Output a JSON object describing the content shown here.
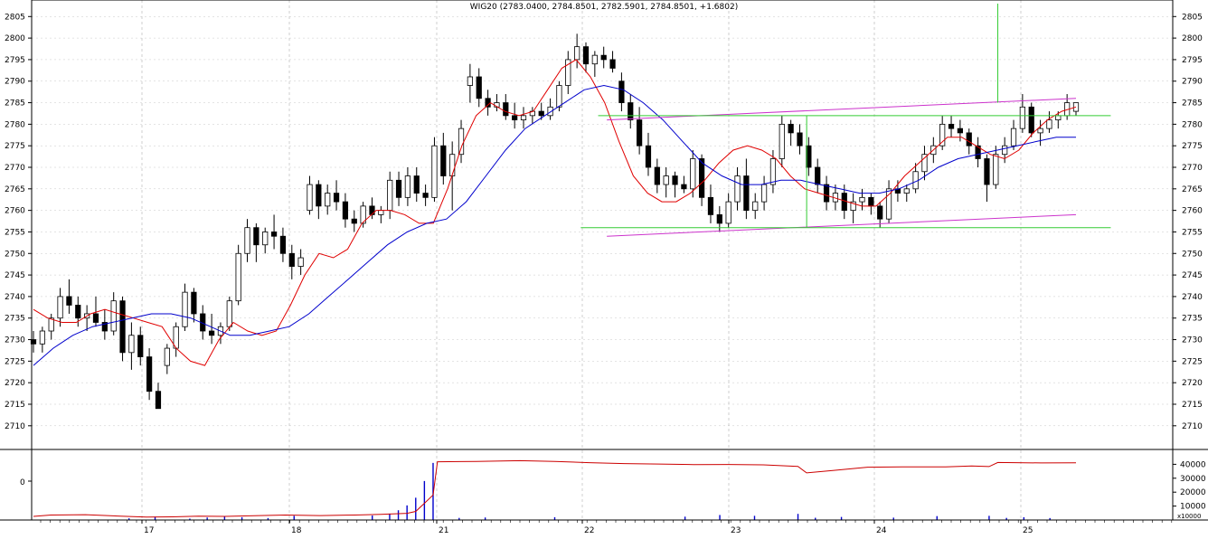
{
  "chart_data": [
    {
      "type": "candlestick",
      "title": "WIG20 (2783.0400, 2784.8501, 2782.5901, 2784.8501, +1.6802)",
      "y_ticks": [
        2710,
        2715,
        2720,
        2725,
        2730,
        2735,
        2740,
        2745,
        2750,
        2755,
        2760,
        2765,
        2770,
        2775,
        2780,
        2785,
        2790,
        2795,
        2800,
        2805
      ],
      "ylim": [
        2704.5,
        2808
      ],
      "day_labels": [
        "17",
        "18",
        "21",
        "22",
        "23",
        "24",
        "25"
      ],
      "grid": true,
      "colors": {
        "candle": "#000000",
        "ma_short": "#e00000",
        "ma_long": "#0000cc",
        "channel": "#cc33cc",
        "levels": "#33cc33"
      },
      "ohlc": [
        [
          2730,
          2732,
          2727,
          2729
        ],
        [
          2729,
          2733,
          2727,
          2732
        ],
        [
          2732,
          2736,
          2730,
          2735
        ],
        [
          2735,
          2742,
          2733,
          2740
        ],
        [
          2740,
          2744,
          2736,
          2738
        ],
        [
          2738,
          2740,
          2733,
          2735
        ],
        [
          2735,
          2738,
          2732,
          2736
        ],
        [
          2736,
          2740,
          2733,
          2734
        ],
        [
          2734,
          2737,
          2730,
          2732
        ],
        [
          2732,
          2741,
          2731,
          2739
        ],
        [
          2739,
          2740,
          2725,
          2727
        ],
        [
          2727,
          2734,
          2723,
          2731
        ],
        [
          2731,
          2733,
          2724,
          2726
        ],
        [
          2726,
          2728,
          2716,
          2718
        ],
        [
          2718,
          2720,
          2714,
          2714
        ],
        [
          2724,
          2729,
          2722,
          2728
        ],
        [
          2728,
          2734,
          2726,
          2733
        ],
        [
          2733,
          2743,
          2732,
          2741
        ],
        [
          2741,
          2742,
          2734,
          2736
        ],
        [
          2736,
          2738,
          2730,
          2732
        ],
        [
          2732,
          2736,
          2729,
          2731
        ],
        [
          2731,
          2734,
          2729,
          2733
        ],
        [
          2733,
          2740,
          2732,
          2739
        ],
        [
          2739,
          2752,
          2738,
          2750
        ],
        [
          2750,
          2758,
          2748,
          2756
        ],
        [
          2756,
          2757,
          2748,
          2752
        ],
        [
          2752,
          2756,
          2750,
          2755
        ],
        [
          2755,
          2759,
          2751,
          2754
        ],
        [
          2754,
          2756,
          2748,
          2750
        ],
        [
          2750,
          2752,
          2744,
          2747
        ],
        [
          2747,
          2751,
          2745,
          2749
        ],
        [
          2760,
          2768,
          2759,
          2766
        ],
        [
          2766,
          2767,
          2758,
          2761
        ],
        [
          2761,
          2766,
          2759,
          2764
        ],
        [
          2764,
          2767,
          2760,
          2762
        ],
        [
          2762,
          2764,
          2756,
          2758
        ],
        [
          2758,
          2760,
          2755,
          2757
        ],
        [
          2757,
          2762,
          2756,
          2761
        ],
        [
          2761,
          2763,
          2758,
          2759
        ],
        [
          2759,
          2761,
          2757,
          2760
        ],
        [
          2760,
          2769,
          2758,
          2767
        ],
        [
          2767,
          2769,
          2761,
          2763
        ],
        [
          2763,
          2770,
          2761,
          2768
        ],
        [
          2768,
          2770,
          2762,
          2764
        ],
        [
          2764,
          2766,
          2761,
          2763
        ],
        [
          2763,
          2777,
          2762,
          2775
        ],
        [
          2775,
          2778,
          2766,
          2768
        ],
        [
          2768,
          2776,
          2760,
          2773
        ],
        [
          2773,
          2781,
          2771,
          2779
        ],
        [
          2789,
          2794,
          2785,
          2791
        ],
        [
          2791,
          2793,
          2784,
          2786
        ],
        [
          2786,
          2788,
          2782,
          2784
        ],
        [
          2784,
          2787,
          2783,
          2785
        ],
        [
          2785,
          2787,
          2781,
          2782
        ],
        [
          2782,
          2785,
          2779,
          2781
        ],
        [
          2781,
          2784,
          2779,
          2782
        ],
        [
          2782,
          2784,
          2780,
          2783
        ],
        [
          2783,
          2785,
          2781,
          2782
        ],
        [
          2782,
          2786,
          2781,
          2784
        ],
        [
          2784,
          2790,
          2783,
          2789
        ],
        [
          2789,
          2797,
          2787,
          2795
        ],
        [
          2795,
          2801,
          2793,
          2798
        ],
        [
          2798,
          2799,
          2792,
          2794
        ],
        [
          2794,
          2797,
          2791,
          2796
        ],
        [
          2796,
          2798,
          2793,
          2795
        ],
        [
          2795,
          2797,
          2792,
          2793
        ],
        [
          2790,
          2792,
          2783,
          2785
        ],
        [
          2785,
          2787,
          2779,
          2781
        ],
        [
          2781,
          2784,
          2773,
          2775
        ],
        [
          2775,
          2778,
          2768,
          2770
        ],
        [
          2770,
          2772,
          2764,
          2766
        ],
        [
          2766,
          2770,
          2763,
          2768
        ],
        [
          2768,
          2769,
          2763,
          2766
        ],
        [
          2766,
          2768,
          2764,
          2765
        ],
        [
          2765,
          2774,
          2763,
          2772
        ],
        [
          2772,
          2773,
          2761,
          2763
        ],
        [
          2763,
          2766,
          2757,
          2759
        ],
        [
          2759,
          2761,
          2755,
          2757
        ],
        [
          2757,
          2764,
          2756,
          2762
        ],
        [
          2762,
          2770,
          2760,
          2768
        ],
        [
          2768,
          2772,
          2758,
          2760
        ],
        [
          2760,
          2764,
          2758,
          2762
        ],
        [
          2762,
          2768,
          2760,
          2766
        ],
        [
          2766,
          2774,
          2764,
          2772
        ],
        [
          2772,
          2782,
          2770,
          2780
        ],
        [
          2780,
          2781,
          2775,
          2778
        ],
        [
          2778,
          2780,
          2773,
          2775
        ],
        [
          2775,
          2777,
          2768,
          2770
        ],
        [
          2770,
          2772,
          2764,
          2766
        ],
        [
          2766,
          2768,
          2760,
          2762
        ],
        [
          2762,
          2766,
          2760,
          2764
        ],
        [
          2764,
          2766,
          2758,
          2760
        ],
        [
          2760,
          2764,
          2757,
          2762
        ],
        [
          2762,
          2765,
          2760,
          2763
        ],
        [
          2763,
          2764,
          2759,
          2761
        ],
        [
          2761,
          2762,
          2756,
          2758
        ],
        [
          2758,
          2767,
          2757,
          2765
        ],
        [
          2765,
          2767,
          2762,
          2764
        ],
        [
          2764,
          2766,
          2762,
          2765
        ],
        [
          2765,
          2771,
          2764,
          2769
        ],
        [
          2769,
          2775,
          2767,
          2773
        ],
        [
          2773,
          2777,
          2771,
          2775
        ],
        [
          2775,
          2782,
          2774,
          2780
        ],
        [
          2780,
          2782,
          2777,
          2779
        ],
        [
          2779,
          2781,
          2776,
          2778
        ],
        [
          2778,
          2779,
          2773,
          2775
        ],
        [
          2775,
          2777,
          2770,
          2772
        ],
        [
          2772,
          2773,
          2762,
          2766
        ],
        [
          2766,
          2775,
          2765,
          2773
        ],
        [
          2773,
          2777,
          2771,
          2775
        ],
        [
          2775,
          2781,
          2774,
          2779
        ],
        [
          2779,
          2787,
          2778,
          2784
        ],
        [
          2784,
          2785,
          2777,
          2778
        ],
        [
          2778,
          2781,
          2775,
          2779
        ],
        [
          2779,
          2783,
          2778,
          2781
        ],
        [
          2781,
          2783,
          2779,
          2782
        ],
        [
          2782,
          2787,
          2781,
          2785
        ],
        [
          2783,
          2785,
          2782,
          2785
        ]
      ],
      "ma_short": [
        2737,
        2735,
        2734,
        2734,
        2736,
        2737,
        2736,
        2735,
        2734,
        2733,
        2728,
        2725,
        2724,
        2730,
        2734,
        2732,
        2731,
        2732,
        2738,
        2745,
        2750,
        2749,
        2751,
        2757,
        2760,
        2760,
        2759,
        2757,
        2757,
        2765,
        2775,
        2782,
        2785,
        2783,
        2782,
        2783,
        2788,
        2793,
        2795,
        2791,
        2785,
        2776,
        2768,
        2764,
        2762,
        2762,
        2764,
        2767,
        2771,
        2774,
        2775,
        2774,
        2772,
        2768,
        2765,
        2764,
        2763,
        2762,
        2761,
        2761,
        2764,
        2768,
        2771,
        2774,
        2777,
        2777,
        2775,
        2773,
        2772,
        2774,
        2778,
        2781,
        2783,
        2784
      ],
      "ma_long": [
        2724,
        2728,
        2731,
        2733,
        2734,
        2735,
        2736,
        2736,
        2735,
        2733,
        2731,
        2731,
        2732,
        2733,
        2736,
        2740,
        2744,
        2748,
        2752,
        2755,
        2757,
        2758,
        2762,
        2768,
        2774,
        2779,
        2782,
        2785,
        2788,
        2789,
        2788,
        2785,
        2781,
        2776,
        2771,
        2768,
        2766,
        2766,
        2767,
        2767,
        2766,
        2765,
        2764,
        2764,
        2765,
        2767,
        2770,
        2772,
        2773,
        2774,
        2775,
        2776,
        2777,
        2777
      ],
      "channel_lines": [
        {
          "from": [
            66,
            2781
          ],
          "to": [
            120,
            2786
          ]
        },
        {
          "from": [
            66,
            2754
          ],
          "to": [
            120,
            2759
          ]
        }
      ],
      "horizontal_levels": [
        {
          "from": [
            65,
            2782
          ],
          "to": [
            124,
            2782
          ]
        },
        {
          "from": [
            63,
            2756
          ],
          "to": [
            124,
            2756
          ]
        }
      ],
      "vertical_markers": [
        {
          "at": 89,
          "from": 2756,
          "to": 2782
        },
        {
          "at": 111,
          "from": 2785,
          "to": 2808
        }
      ]
    },
    {
      "type": "bar+line",
      "left_ticks": [
        "0"
      ],
      "right_ticks": [
        40000,
        30000,
        20000,
        10000
      ],
      "unit_label": "x10000",
      "ylim": [
        0,
        50000
      ],
      "volume_bars": [
        [
          11,
          1200
        ],
        [
          14,
          2400
        ],
        [
          18,
          1000
        ],
        [
          20,
          1800
        ],
        [
          22,
          2600
        ],
        [
          24,
          2000
        ],
        [
          27,
          1400
        ],
        [
          30,
          3000
        ],
        [
          39,
          3200
        ],
        [
          41,
          4600
        ],
        [
          42,
          7000
        ],
        [
          43,
          10500
        ],
        [
          44,
          16000
        ],
        [
          45,
          28000
        ],
        [
          46,
          41000
        ],
        [
          49,
          1500
        ],
        [
          52,
          1800
        ],
        [
          60,
          2000
        ],
        [
          75,
          2400
        ],
        [
          79,
          3600
        ],
        [
          83,
          3000
        ],
        [
          88,
          4400
        ],
        [
          90,
          1600
        ],
        [
          93,
          2200
        ],
        [
          99,
          1700
        ],
        [
          104,
          2800
        ],
        [
          110,
          3000
        ],
        [
          112,
          1500
        ],
        [
          114,
          2000
        ],
        [
          117,
          1400
        ]
      ],
      "line": [
        [
          0,
          2600
        ],
        [
          2,
          3600
        ],
        [
          6,
          3800
        ],
        [
          10,
          2800
        ],
        [
          13,
          2100
        ],
        [
          16,
          2300
        ],
        [
          19,
          2800
        ],
        [
          22,
          2600
        ],
        [
          26,
          3200
        ],
        [
          29,
          3600
        ],
        [
          33,
          3200
        ],
        [
          37,
          3600
        ],
        [
          40,
          4100
        ],
        [
          43,
          4800
        ],
        [
          44,
          6200
        ],
        [
          45,
          12000
        ],
        [
          46,
          18000
        ],
        [
          46.5,
          41800
        ],
        [
          51,
          42100
        ],
        [
          56,
          42600
        ],
        [
          60,
          42000
        ],
        [
          64,
          41200
        ],
        [
          68,
          40500
        ],
        [
          72,
          40200
        ],
        [
          76,
          39800
        ],
        [
          80,
          39900
        ],
        [
          84,
          39600
        ],
        [
          88,
          38500
        ],
        [
          89,
          33800
        ],
        [
          92,
          35600
        ],
        [
          96,
          37900
        ],
        [
          100,
          38200
        ],
        [
          105,
          38100
        ],
        [
          108,
          38800
        ],
        [
          110,
          38400
        ],
        [
          111,
          41300
        ],
        [
          116,
          41000
        ],
        [
          120,
          41100
        ]
      ]
    }
  ]
}
